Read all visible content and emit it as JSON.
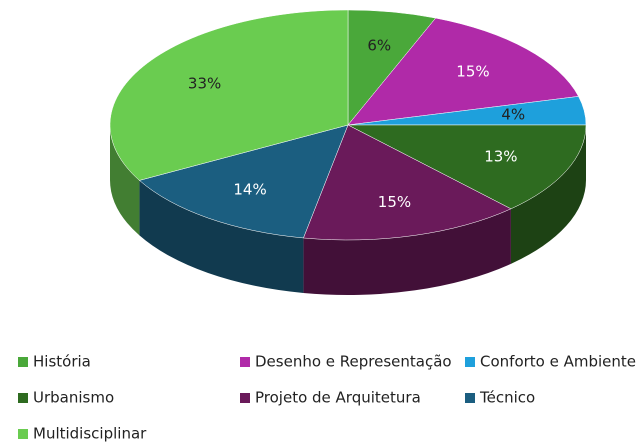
{
  "chart_data": {
    "type": "pie",
    "categories": [
      "História",
      "Desenho e Representação",
      "Conforto e Ambiente",
      "Urbanismo",
      "Projeto de Arquitetura",
      "Técnico",
      "Multidisciplinar"
    ],
    "values": [
      6,
      15,
      4,
      13,
      15,
      14,
      33
    ],
    "value_labels": [
      "6%",
      "15%",
      "4%",
      "13%",
      "15%",
      "14%",
      "33%"
    ],
    "colors": [
      "#4aa83a",
      "#b02aa8",
      "#1ea0dc",
      "#2e6b20",
      "#6a1a5a",
      "#1b5e80",
      "#6acc50"
    ],
    "legend": "bottom"
  }
}
